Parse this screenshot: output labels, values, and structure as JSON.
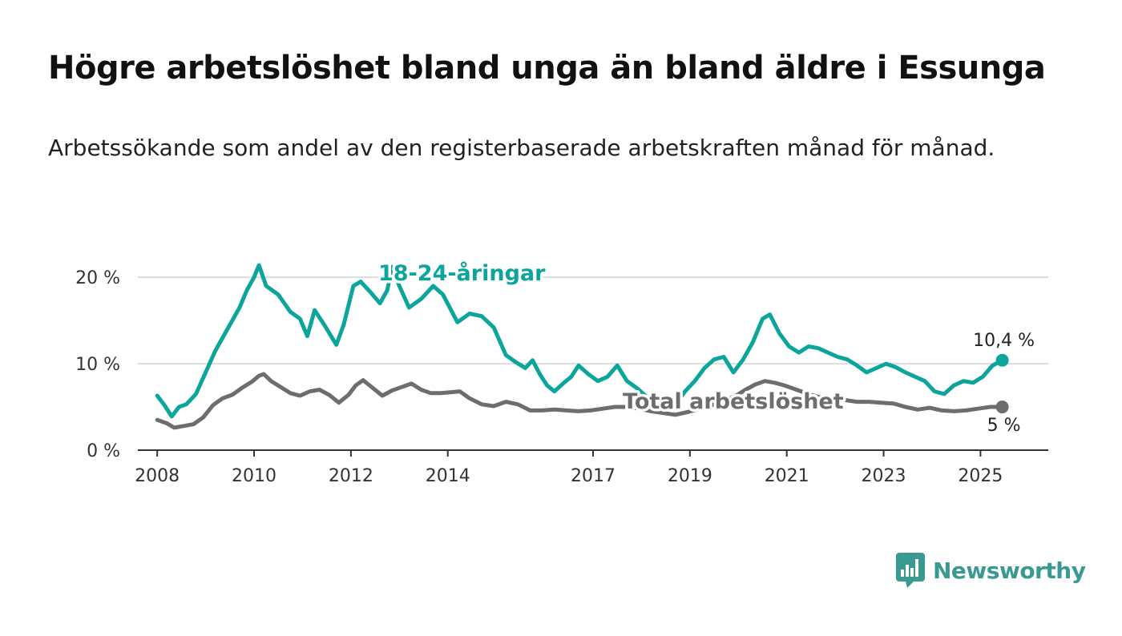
{
  "title": "Högre arbetslöshet bland unga än bland äldre i Essunga",
  "subtitle": "Arbetssökande som andel av den registerbaserade arbetskraften månad för månad.",
  "brand": {
    "name": "Newsworthy",
    "color": "#3a9a92",
    "icon": "bar-chart-logo"
  },
  "colors": {
    "youth": "#0ca59b",
    "total": "#6d6d6f",
    "grid": "#dddddd",
    "axis": "#333333"
  },
  "chart_data": {
    "type": "line",
    "title": "",
    "xlabel": "",
    "ylabel": "",
    "ylim": [
      0,
      21.5
    ],
    "xlim": [
      2007.6,
      2026.4
    ],
    "y_ticks": [
      0,
      10,
      20
    ],
    "y_tick_labels": [
      "0 %",
      "10 %",
      "20 %"
    ],
    "x_ticks": [
      2008,
      2010,
      2012,
      2014,
      2017,
      2019,
      2021,
      2023,
      2025
    ],
    "x_tick_labels": [
      "2008",
      "2010",
      "2012",
      "2014",
      "2017",
      "2019",
      "2021",
      "2023",
      "2025"
    ],
    "grid": "horizontal",
    "series": [
      {
        "name": "18-24-åringar",
        "color": "#0ca59b",
        "end_label": "10,4 %",
        "points": [
          [
            2008.0,
            6.3
          ],
          [
            2008.15,
            5.2
          ],
          [
            2008.3,
            3.9
          ],
          [
            2008.45,
            5.0
          ],
          [
            2008.6,
            5.3
          ],
          [
            2008.8,
            6.5
          ],
          [
            2009.0,
            9.0
          ],
          [
            2009.2,
            11.5
          ],
          [
            2009.45,
            14.0
          ],
          [
            2009.7,
            16.5
          ],
          [
            2009.85,
            18.5
          ],
          [
            2010.0,
            20.0
          ],
          [
            2010.1,
            21.4
          ],
          [
            2010.25,
            19.0
          ],
          [
            2010.5,
            18.0
          ],
          [
            2010.75,
            16.0
          ],
          [
            2010.95,
            15.2
          ],
          [
            2011.1,
            13.2
          ],
          [
            2011.25,
            16.2
          ],
          [
            2011.45,
            14.5
          ],
          [
            2011.7,
            12.2
          ],
          [
            2011.85,
            14.5
          ],
          [
            2012.05,
            19.0
          ],
          [
            2012.2,
            19.5
          ],
          [
            2012.4,
            18.3
          ],
          [
            2012.6,
            17.0
          ],
          [
            2012.75,
            18.5
          ],
          [
            2012.85,
            21.2
          ],
          [
            2013.0,
            19.0
          ],
          [
            2013.2,
            16.5
          ],
          [
            2013.45,
            17.5
          ],
          [
            2013.7,
            19.0
          ],
          [
            2013.9,
            18.0
          ],
          [
            2014.2,
            14.8
          ],
          [
            2014.45,
            15.8
          ],
          [
            2014.7,
            15.5
          ],
          [
            2014.95,
            14.2
          ],
          [
            2015.2,
            11.0
          ],
          [
            2015.4,
            10.2
          ],
          [
            2015.6,
            9.5
          ],
          [
            2015.75,
            10.4
          ],
          [
            2015.9,
            8.8
          ],
          [
            2016.05,
            7.5
          ],
          [
            2016.2,
            6.8
          ],
          [
            2016.4,
            7.8
          ],
          [
            2016.55,
            8.5
          ],
          [
            2016.7,
            9.8
          ],
          [
            2016.9,
            8.8
          ],
          [
            2017.1,
            8.0
          ],
          [
            2017.3,
            8.5
          ],
          [
            2017.5,
            9.8
          ],
          [
            2017.7,
            8.0
          ],
          [
            2017.9,
            7.2
          ],
          [
            2018.1,
            6.2
          ],
          [
            2018.3,
            5.5
          ],
          [
            2018.5,
            5.0
          ],
          [
            2018.7,
            5.3
          ],
          [
            2018.9,
            6.8
          ],
          [
            2019.1,
            8.0
          ],
          [
            2019.3,
            9.5
          ],
          [
            2019.5,
            10.5
          ],
          [
            2019.7,
            10.8
          ],
          [
            2019.9,
            9.0
          ],
          [
            2020.1,
            10.5
          ],
          [
            2020.3,
            12.5
          ],
          [
            2020.5,
            15.2
          ],
          [
            2020.65,
            15.7
          ],
          [
            2020.85,
            13.5
          ],
          [
            2021.05,
            12.0
          ],
          [
            2021.25,
            11.3
          ],
          [
            2021.45,
            12.0
          ],
          [
            2021.65,
            11.8
          ],
          [
            2021.85,
            11.3
          ],
          [
            2022.05,
            10.8
          ],
          [
            2022.25,
            10.5
          ],
          [
            2022.45,
            9.8
          ],
          [
            2022.65,
            9.0
          ],
          [
            2022.85,
            9.5
          ],
          [
            2023.05,
            10.0
          ],
          [
            2023.25,
            9.6
          ],
          [
            2023.45,
            9.0
          ],
          [
            2023.65,
            8.5
          ],
          [
            2023.85,
            8.0
          ],
          [
            2024.05,
            6.8
          ],
          [
            2024.25,
            6.5
          ],
          [
            2024.45,
            7.5
          ],
          [
            2024.65,
            8.0
          ],
          [
            2024.85,
            7.8
          ],
          [
            2025.05,
            8.5
          ],
          [
            2025.25,
            9.8
          ],
          [
            2025.45,
            10.4
          ]
        ]
      },
      {
        "name": "Total arbetslöshet",
        "color": "#6d6d6f",
        "end_label": "5 %",
        "points": [
          [
            2008.0,
            3.5
          ],
          [
            2008.2,
            3.1
          ],
          [
            2008.35,
            2.6
          ],
          [
            2008.55,
            2.8
          ],
          [
            2008.75,
            3.0
          ],
          [
            2008.95,
            3.8
          ],
          [
            2009.15,
            5.2
          ],
          [
            2009.35,
            6.0
          ],
          [
            2009.55,
            6.4
          ],
          [
            2009.75,
            7.2
          ],
          [
            2009.95,
            7.9
          ],
          [
            2010.1,
            8.6
          ],
          [
            2010.2,
            8.8
          ],
          [
            2010.35,
            8.0
          ],
          [
            2010.55,
            7.3
          ],
          [
            2010.75,
            6.6
          ],
          [
            2010.95,
            6.3
          ],
          [
            2011.15,
            6.8
          ],
          [
            2011.35,
            7.0
          ],
          [
            2011.55,
            6.4
          ],
          [
            2011.75,
            5.5
          ],
          [
            2011.95,
            6.4
          ],
          [
            2012.1,
            7.5
          ],
          [
            2012.25,
            8.1
          ],
          [
            2012.45,
            7.2
          ],
          [
            2012.65,
            6.3
          ],
          [
            2012.85,
            6.9
          ],
          [
            2013.05,
            7.3
          ],
          [
            2013.25,
            7.7
          ],
          [
            2013.45,
            7.0
          ],
          [
            2013.65,
            6.6
          ],
          [
            2013.85,
            6.6
          ],
          [
            2014.05,
            6.7
          ],
          [
            2014.25,
            6.8
          ],
          [
            2014.45,
            6.0
          ],
          [
            2014.7,
            5.3
          ],
          [
            2014.95,
            5.1
          ],
          [
            2015.2,
            5.6
          ],
          [
            2015.45,
            5.3
          ],
          [
            2015.7,
            4.6
          ],
          [
            2015.95,
            4.6
          ],
          [
            2016.2,
            4.7
          ],
          [
            2016.45,
            4.6
          ],
          [
            2016.7,
            4.5
          ],
          [
            2016.95,
            4.6
          ],
          [
            2017.2,
            4.8
          ],
          [
            2017.45,
            5.0
          ],
          [
            2017.7,
            5.0
          ],
          [
            2017.95,
            4.8
          ],
          [
            2018.2,
            4.5
          ],
          [
            2018.45,
            4.3
          ],
          [
            2018.7,
            4.1
          ],
          [
            2018.95,
            4.4
          ],
          [
            2019.2,
            4.8
          ],
          [
            2019.45,
            5.2
          ],
          [
            2019.7,
            5.7
          ],
          [
            2019.95,
            6.3
          ],
          [
            2020.15,
            7.0
          ],
          [
            2020.35,
            7.6
          ],
          [
            2020.55,
            8.0
          ],
          [
            2020.75,
            7.8
          ],
          [
            2020.95,
            7.5
          ],
          [
            2021.2,
            7.0
          ],
          [
            2021.45,
            6.5
          ],
          [
            2021.7,
            6.1
          ],
          [
            2021.95,
            5.8
          ],
          [
            2022.2,
            5.8
          ],
          [
            2022.45,
            5.6
          ],
          [
            2022.7,
            5.6
          ],
          [
            2022.95,
            5.5
          ],
          [
            2023.2,
            5.4
          ],
          [
            2023.45,
            5.0
          ],
          [
            2023.7,
            4.7
          ],
          [
            2023.95,
            4.9
          ],
          [
            2024.2,
            4.6
          ],
          [
            2024.45,
            4.5
          ],
          [
            2024.7,
            4.6
          ],
          [
            2024.95,
            4.8
          ],
          [
            2025.2,
            5.0
          ],
          [
            2025.45,
            5.0
          ]
        ]
      }
    ]
  }
}
